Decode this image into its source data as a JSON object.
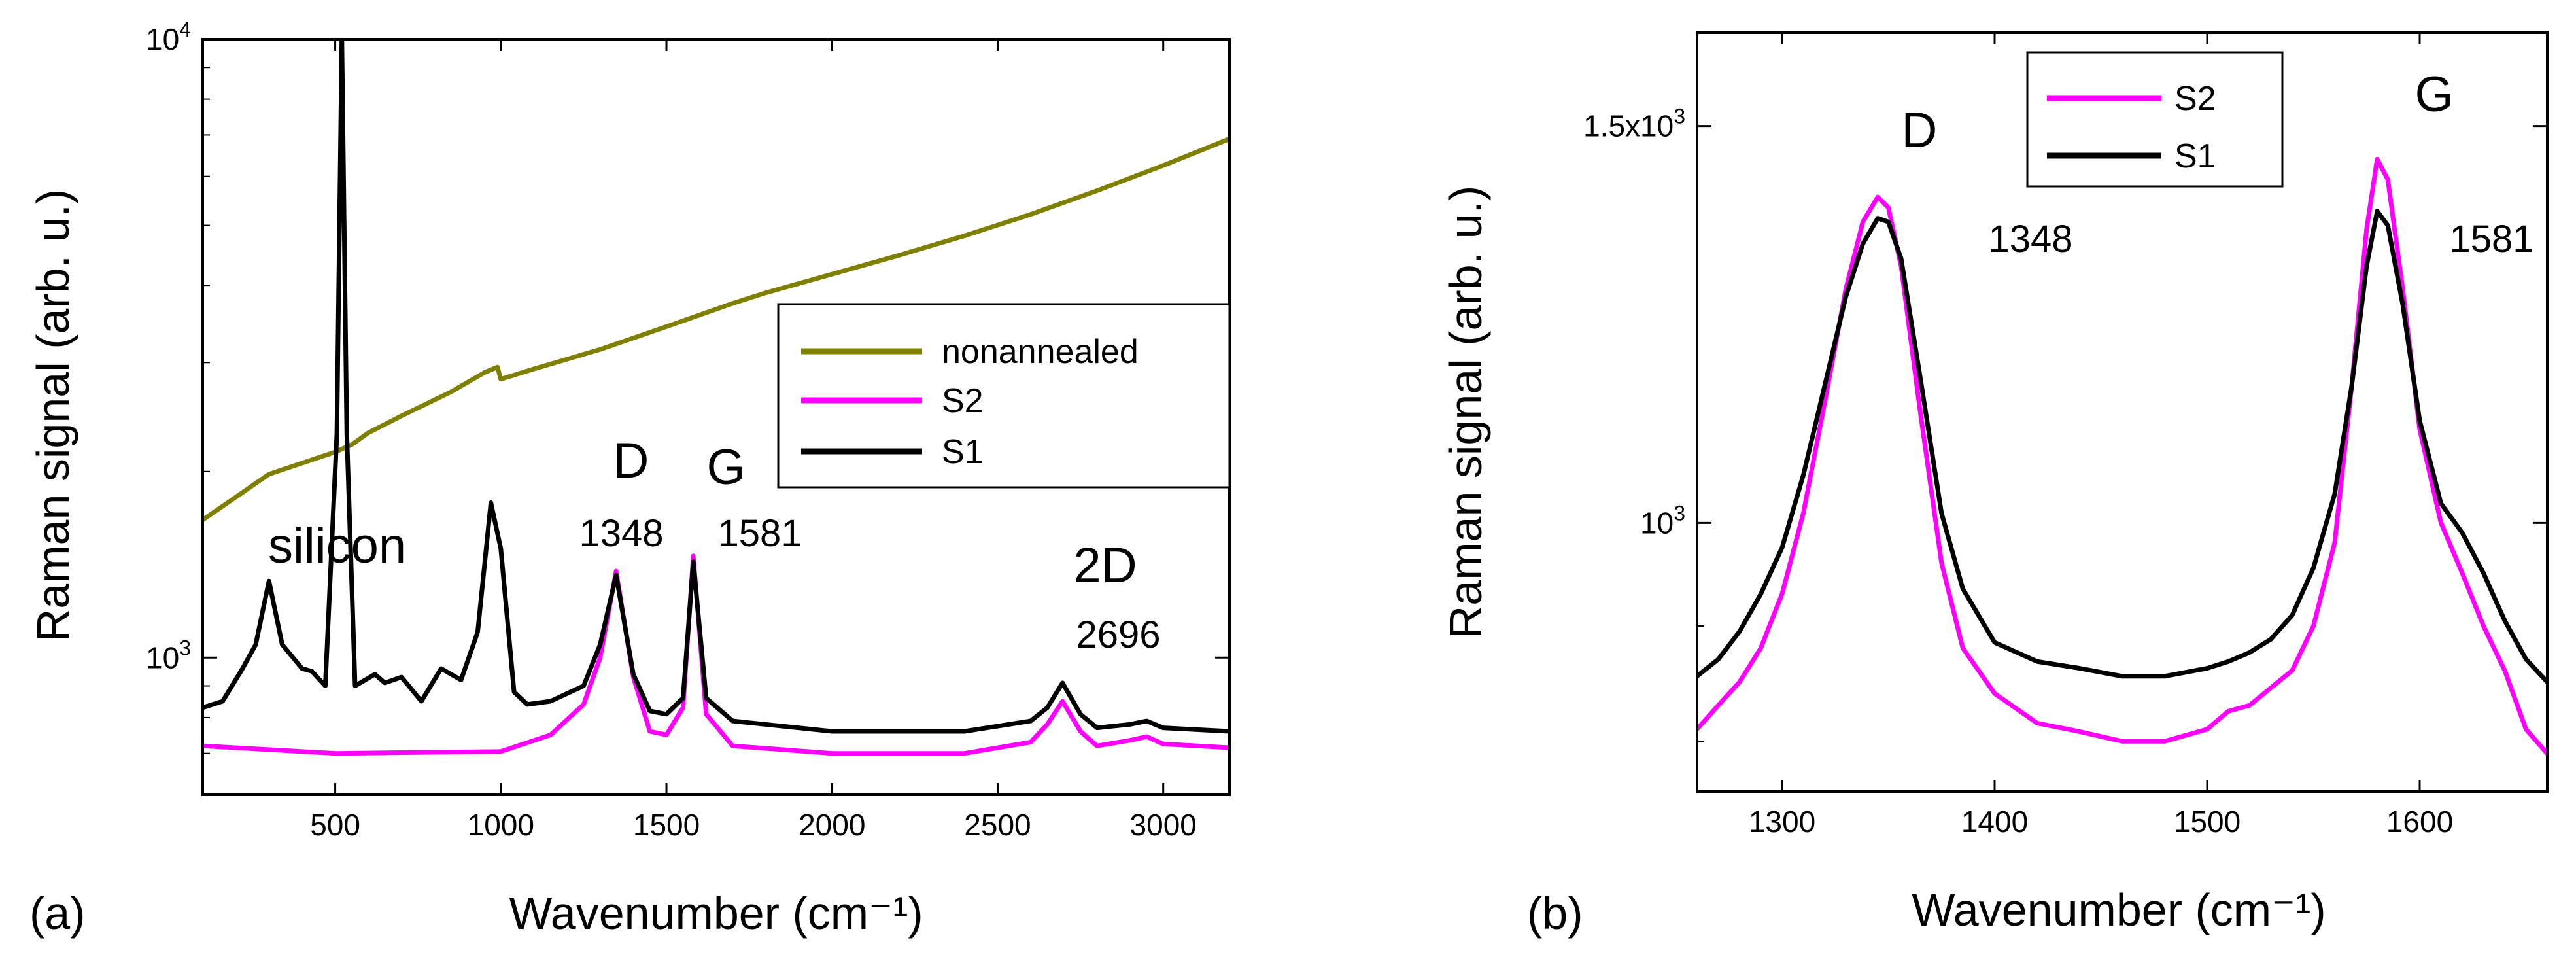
{
  "chart_data": [
    {
      "panel": "a",
      "panel_label": "(a)",
      "type": "line",
      "xlabel": "Wavenumber (cm⁻¹)",
      "ylabel": "Raman signal (arb. u.)",
      "xlim": [
        100,
        3200
      ],
      "ylim": [
        600,
        10000
      ],
      "yscale": "log",
      "xticks": [
        500,
        1000,
        1500,
        2000,
        2500,
        3000
      ],
      "xtick_labels": [
        "500",
        "1000",
        "1500",
        "2000",
        "2500",
        "3000"
      ],
      "yticks": [
        1000,
        10000
      ],
      "ytick_labels": [
        {
          "base": "10",
          "exp": "3"
        },
        {
          "base": "10",
          "exp": "4"
        }
      ],
      "legend": {
        "position": "center-right",
        "entries": [
          {
            "label": "nonannealed",
            "color": "#808000"
          },
          {
            "label": "S2",
            "color": "#ff00ff"
          },
          {
            "label": "S1",
            "color": "#000000"
          }
        ]
      },
      "annotations": {
        "silicon": "silicon",
        "D": "D",
        "G": "G",
        "twoD": "2D",
        "d_pos": "1348",
        "g_pos": "1581",
        "twod_pos": "2696"
      },
      "series": [
        {
          "name": "nonannealed",
          "color": "#808000",
          "x": [
            100,
            300,
            500,
            550,
            600,
            700,
            850,
            950,
            990,
            1000,
            1100,
            1300,
            1500,
            1700,
            1800,
            2000,
            2200,
            2400,
            2600,
            2800,
            3000,
            3200
          ],
          "y": [
            1670,
            1980,
            2150,
            2210,
            2310,
            2460,
            2690,
            2890,
            2950,
            2820,
            2930,
            3150,
            3430,
            3740,
            3890,
            4170,
            4470,
            4810,
            5210,
            5690,
            6250,
            6900
          ]
        },
        {
          "name": "S2",
          "color": "#ff00ff",
          "x": [
            100,
            500,
            1000,
            1150,
            1250,
            1300,
            1348,
            1400,
            1450,
            1500,
            1550,
            1581,
            1620,
            1700,
            2000,
            2400,
            2600,
            2650,
            2696,
            2750,
            2800,
            2900,
            2950,
            3000,
            3200
          ],
          "y": [
            720,
            700,
            705,
            750,
            840,
            1000,
            1380,
            930,
            760,
            750,
            830,
            1460,
            810,
            720,
            700,
            700,
            730,
            780,
            850,
            760,
            720,
            735,
            745,
            725,
            715
          ]
        },
        {
          "name": "S1",
          "color": "#000000",
          "x": [
            100,
            160,
            220,
            260,
            300,
            340,
            400,
            430,
            470,
            505,
            520,
            535,
            560,
            620,
            650,
            700,
            760,
            820,
            880,
            930,
            970,
            1000,
            1040,
            1080,
            1150,
            1250,
            1300,
            1348,
            1400,
            1450,
            1500,
            1550,
            1581,
            1620,
            1700,
            2000,
            2400,
            2600,
            2650,
            2696,
            2750,
            2800,
            2900,
            2950,
            3000,
            3200
          ],
          "y": [
            830,
            850,
            960,
            1050,
            1330,
            1050,
            960,
            950,
            900,
            2300,
            10000,
            2300,
            900,
            940,
            910,
            930,
            850,
            960,
            920,
            1100,
            1780,
            1500,
            880,
            840,
            850,
            900,
            1050,
            1360,
            940,
            820,
            810,
            860,
            1430,
            860,
            790,
            760,
            760,
            790,
            830,
            910,
            810,
            770,
            780,
            790,
            770,
            760
          ]
        }
      ]
    },
    {
      "panel": "b",
      "panel_label": "(b)",
      "type": "line",
      "xlabel": "Wavenumber (cm⁻¹)",
      "ylabel": "Raman signal (arb. u.)",
      "xlim": [
        1260,
        1660
      ],
      "ylim": [
        760,
        1650
      ],
      "yscale": "log",
      "xticks": [
        1300,
        1400,
        1500,
        1600
      ],
      "xtick_labels": [
        "1300",
        "1400",
        "1500",
        "1600"
      ],
      "yticks": [
        1000,
        1500
      ],
      "ytick_labels": [
        {
          "base": "10",
          "exp": "3"
        },
        {
          "base": "1.5x10",
          "exp": "3"
        }
      ],
      "legend": {
        "position": "top-center",
        "entries": [
          {
            "label": "S2",
            "color": "#ff00ff"
          },
          {
            "label": "S1",
            "color": "#000000"
          }
        ]
      },
      "annotations": {
        "D": "D",
        "G": "G",
        "d_pos": "1348",
        "g_pos": "1581"
      },
      "series": [
        {
          "name": "S2",
          "color": "#ff00ff",
          "x": [
            1260,
            1270,
            1280,
            1290,
            1300,
            1310,
            1320,
            1330,
            1338,
            1345,
            1350,
            1356,
            1365,
            1375,
            1385,
            1400,
            1420,
            1440,
            1460,
            1480,
            1500,
            1510,
            1520,
            1530,
            1540,
            1550,
            1560,
            1568,
            1575,
            1580,
            1585,
            1592,
            1600,
            1610,
            1620,
            1630,
            1640,
            1650,
            1660
          ],
          "y": [
            810,
            830,
            850,
            880,
            930,
            1010,
            1130,
            1270,
            1360,
            1395,
            1380,
            1300,
            1120,
            960,
            880,
            840,
            815,
            808,
            800,
            800,
            810,
            825,
            830,
            845,
            860,
            900,
            980,
            1150,
            1350,
            1450,
            1420,
            1270,
            1100,
            1000,
            950,
            900,
            860,
            810,
            790
          ]
        },
        {
          "name": "S1",
          "color": "#000000",
          "x": [
            1260,
            1270,
            1280,
            1290,
            1300,
            1310,
            1320,
            1330,
            1338,
            1345,
            1350,
            1356,
            1365,
            1375,
            1385,
            1400,
            1420,
            1440,
            1460,
            1480,
            1500,
            1510,
            1520,
            1530,
            1540,
            1550,
            1560,
            1568,
            1575,
            1580,
            1585,
            1592,
            1600,
            1610,
            1620,
            1630,
            1640,
            1650,
            1660
          ],
          "y": [
            855,
            870,
            895,
            930,
            975,
            1050,
            1150,
            1260,
            1330,
            1365,
            1360,
            1310,
            1160,
            1010,
            935,
            885,
            868,
            862,
            855,
            855,
            862,
            868,
            876,
            888,
            910,
            955,
            1030,
            1150,
            1300,
            1375,
            1355,
            1250,
            1110,
            1020,
            990,
            950,
            905,
            870,
            850
          ]
        }
      ]
    }
  ]
}
